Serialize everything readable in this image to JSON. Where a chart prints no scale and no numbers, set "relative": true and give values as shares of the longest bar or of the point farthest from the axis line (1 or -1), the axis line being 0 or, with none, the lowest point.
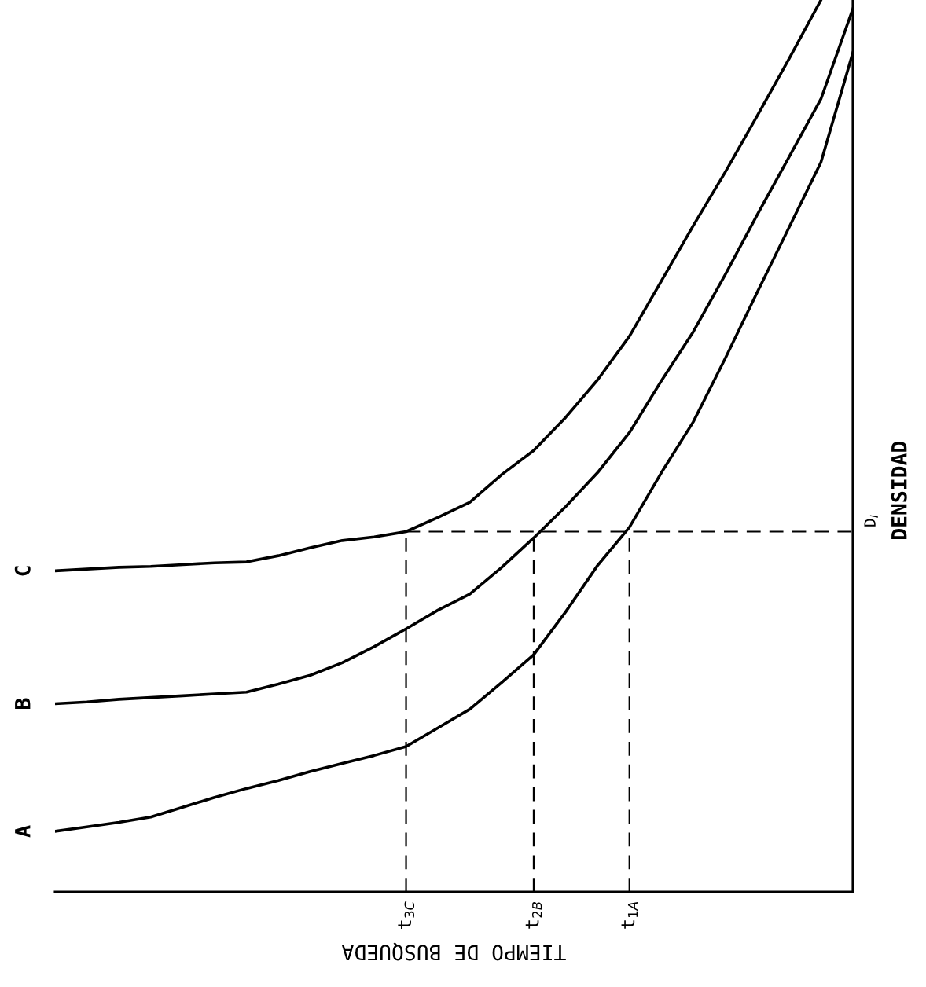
{
  "chart_data": {
    "type": "line",
    "relative": true,
    "xlabel": "TIEMPO DE BUSQUEDA",
    "ylabel": "DENSIDAD",
    "categories": [
      null,
      null,
      null,
      null,
      null,
      null,
      null,
      null,
      null,
      null,
      null,
      "t$_{3C}$",
      null,
      null,
      null,
      "t$_{2B}$",
      null,
      null,
      "t$_{1A}$",
      null,
      null,
      null,
      null,
      null,
      null,
      null
    ],
    "tick_labels": "x",
    "grid": false,
    "legend": false,
    "marker": "none",
    "line_style": "solid",
    "series": [
      {
        "name": "A",
        "color": "#000000",
        "values": [
          0.068,
          0.073,
          0.078,
          0.084,
          0.095,
          0.106,
          0.116,
          0.125,
          0.135,
          0.144,
          0.153,
          0.163,
          0.184,
          0.205,
          0.235,
          0.266,
          0.314,
          0.366,
          0.409,
          0.47,
          0.527,
          0.598,
          0.672,
          0.745,
          0.818,
          0.941
        ]
      },
      {
        "name": "B",
        "color": "#000000",
        "values": [
          0.211,
          0.213,
          0.216,
          0.218,
          0.22,
          0.222,
          0.224,
          0.233,
          0.243,
          0.257,
          0.275,
          0.295,
          0.316,
          0.334,
          0.364,
          0.397,
          0.432,
          0.47,
          0.515,
          0.573,
          0.628,
          0.692,
          0.759,
          0.824,
          0.889,
          0.99
        ]
      },
      {
        "name": "C",
        "color": "#000000",
        "values": [
          0.36,
          0.362,
          0.364,
          0.365,
          0.367,
          0.369,
          0.37,
          0.377,
          0.386,
          0.394,
          0.398,
          0.404,
          0.42,
          0.437,
          0.468,
          0.495,
          0.532,
          0.574,
          0.623,
          0.685,
          0.747,
          0.807,
          0.87,
          0.934,
          1.0,
          null
        ]
      },
      {
        "color": "#000000",
        "line_style": "dashed",
        "x": [
          "t$_{3C}$",
          "t$_{3C}$"
        ],
        "values": [
          0,
          0.404
        ]
      },
      {
        "color": "#000000",
        "line_style": "dashed",
        "x": [
          "t$_{2B}$",
          "t$_{2B}$"
        ],
        "values": [
          0,
          0.404
        ]
      },
      {
        "color": "#000000",
        "line_style": "dashed",
        "x": [
          "t$_{1A}$",
          "t$_{1A}$"
        ],
        "values": [
          0,
          0.404
        ]
      }
    ],
    "ref_lines": [
      {
        "axis": "y",
        "value": 0.404,
        "label": "D$_{I}$",
        "line_style": "dashed",
        "color": "#000000"
      }
    ]
  }
}
